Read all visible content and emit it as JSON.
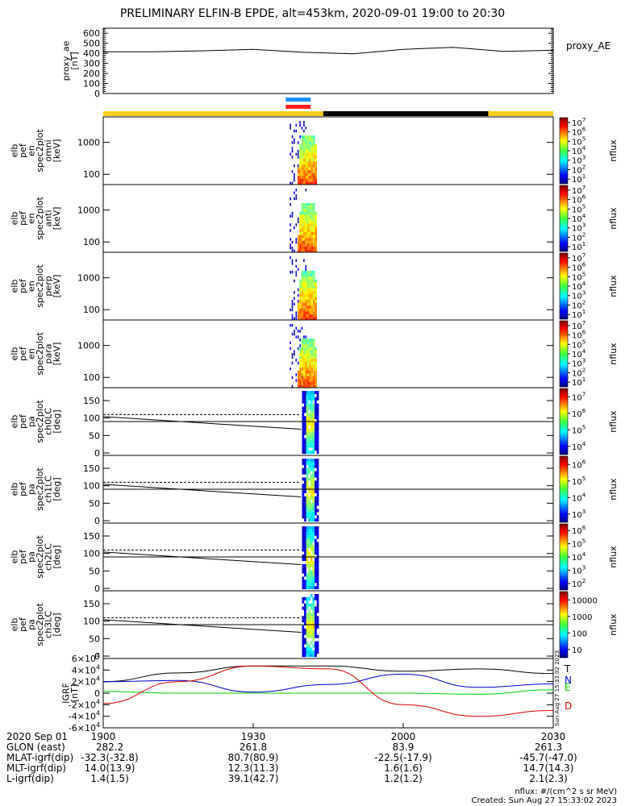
{
  "title": "PRELIMINARY ELFIN-B EPDE, alt=453km, 2020-09-01 19:00 to 20:30",
  "proxy_panel": {
    "ylabel_lines": [
      "proxy_ae",
      "[nT]"
    ],
    "legend": "proxy_AE",
    "y_ticks": [
      "0",
      "100",
      "200",
      "300",
      "400",
      "500",
      "600"
    ],
    "ylim": [
      0,
      650
    ]
  },
  "colors": {
    "sunlight": "#f5d020",
    "eclipse": "#000000",
    "bar_blue": "#1e90ff",
    "bar_red": "#ff2020",
    "grf_T": "#000000",
    "grf_N": "#0000cc",
    "grf_E": "#00cc00",
    "grf_D": "#dd0000"
  },
  "spectra_panels": [
    {
      "ylabel_lines": [
        "elb",
        "pef",
        "en",
        "spec2plot",
        "omni",
        "[keV]"
      ],
      "y_ticks": [
        "100",
        "1000"
      ],
      "cbar_ticks": [
        "10^1",
        "10^2",
        "10^3",
        "10^4",
        "10^5",
        "10^6",
        "10^7"
      ],
      "cbar_label": "nflux"
    },
    {
      "ylabel_lines": [
        "elb",
        "pef",
        "en",
        "spec2plot",
        "anti",
        "[keV]"
      ],
      "y_ticks": [
        "100",
        "1000"
      ],
      "cbar_ticks": [
        "10^1",
        "10^2",
        "10^3",
        "10^4",
        "10^5",
        "10^6",
        "10^7"
      ],
      "cbar_label": "nflux"
    },
    {
      "ylabel_lines": [
        "elb",
        "pef",
        "en",
        "spec2plot",
        "perp",
        "[keV]"
      ],
      "y_ticks": [
        "100",
        "1000"
      ],
      "cbar_ticks": [
        "10^1",
        "10^2",
        "10^3",
        "10^4",
        "10^5",
        "10^6",
        "10^7"
      ],
      "cbar_label": "nflux"
    },
    {
      "ylabel_lines": [
        "elb",
        "pef",
        "en",
        "spec2plot",
        "para",
        "[keV]"
      ],
      "y_ticks": [
        "100",
        "1000"
      ],
      "cbar_ticks": [
        "10^1",
        "10^2",
        "10^3",
        "10^4",
        "10^5",
        "10^6",
        "10^7"
      ],
      "cbar_label": "nflux"
    }
  ],
  "pa_panels": [
    {
      "ylabel_lines": [
        "elb",
        "pef",
        "pa",
        "spec2plot",
        "ch0LC",
        "[deg]"
      ],
      "y_ticks": [
        "0",
        "50",
        "100",
        "150"
      ],
      "cbar_ticks": [
        "10^4",
        "10^5",
        "10^6",
        "10^7"
      ],
      "cbar_label": "nflux"
    },
    {
      "ylabel_lines": [
        "elb",
        "pef",
        "pa",
        "spec2plot",
        "ch1LC",
        "[deg]"
      ],
      "y_ticks": [
        "0",
        "50",
        "100",
        "150"
      ],
      "cbar_ticks": [
        "10^3",
        "10^4",
        "10^5",
        "10^6"
      ],
      "cbar_label": "nflux"
    },
    {
      "ylabel_lines": [
        "elb",
        "pef",
        "pa",
        "spec2plot",
        "ch2LC",
        "[deg]"
      ],
      "y_ticks": [
        "0",
        "50",
        "100",
        "150"
      ],
      "cbar_ticks": [
        "10^2",
        "10^3",
        "10^4",
        "10^5",
        "10^6"
      ],
      "cbar_label": "nflux"
    },
    {
      "ylabel_lines": [
        "elb",
        "pef",
        "pa",
        "spec2plot",
        "ch3LC",
        "[deg]"
      ],
      "y_ticks": [
        "0",
        "50",
        "100",
        "150"
      ],
      "cbar_ticks": [
        "10",
        "100",
        "1000",
        "10000"
      ],
      "cbar_label": "nflux"
    }
  ],
  "grf_panel": {
    "ylabel_lines": [
      "IGRF",
      "[nT]"
    ],
    "y_ticks": [
      "-6×10^4",
      "-4×10^4",
      "-2×10^4",
      "0",
      "2×10^4",
      "4×10^4",
      "6×10^4"
    ],
    "ylim": [
      -60000,
      60000
    ],
    "legend": [
      "T",
      "N",
      "E",
      "D"
    ],
    "stamp": "Sun Aug 27 15:33:02 2023"
  },
  "footer": {
    "rows": [
      {
        "label": "2020 Sep 01",
        "values": [
          "1900",
          "1930",
          "2000",
          "2030"
        ]
      },
      {
        "label": "GLON (east)",
        "values": [
          "282.2",
          "261.8",
          "83.9",
          "261.3"
        ]
      },
      {
        "label": "MLAT-igrf(dip)",
        "values": [
          "-32.3(-32.8)",
          "80.7(80.9)",
          "-22.5(-17.9)",
          "-45.7(-47.0)"
        ]
      },
      {
        "label": "MLT-igrf(dip)",
        "values": [
          "14.0(13.9)",
          "12.3(11.3)",
          "1.6(1.6)",
          "14.7(14.3)"
        ]
      },
      {
        "label": "L-igrf(dip)",
        "values": [
          "1.4(1.5)",
          "39.1(42.7)",
          "1.2(1.2)",
          "2.1(2.3)"
        ]
      }
    ],
    "note_units": "nflux: #/(cm^2 s sr MeV)",
    "note_created": "Created: Sun Aug 27 15:33:02 2023"
  },
  "chart_data": [
    {
      "type": "line",
      "name": "proxy_AE",
      "x": [
        "19:00",
        "19:10",
        "19:20",
        "19:30",
        "19:40",
        "19:50",
        "20:00",
        "20:10",
        "20:20",
        "20:30"
      ],
      "y": [
        415,
        415,
        425,
        440,
        410,
        395,
        440,
        460,
        420,
        430
      ],
      "ylim": [
        0,
        650
      ]
    },
    {
      "type": "heatmap",
      "panels": [
        "omni",
        "anti",
        "perp",
        "para",
        "ch0LC",
        "ch1LC",
        "ch2LC",
        "ch3LC"
      ],
      "time_range": [
        "19:39",
        "19:44"
      ],
      "energy_range_keV": [
        60,
        5000
      ]
    },
    {
      "type": "line",
      "name": "IGRF",
      "x": [
        "19:00",
        "19:15",
        "19:30",
        "19:45",
        "20:00",
        "20:15",
        "20:30"
      ],
      "series": [
        {
          "name": "T",
          "values": [
            20000,
            35000,
            47000,
            47000,
            38000,
            42000,
            34000
          ]
        },
        {
          "name": "N",
          "values": [
            20000,
            22000,
            2000,
            15000,
            33000,
            10000,
            16000
          ]
        },
        {
          "name": "E",
          "values": [
            3000,
            0,
            0,
            0,
            0,
            -2000,
            6000
          ]
        },
        {
          "name": "D",
          "values": [
            -18000,
            20000,
            47000,
            42000,
            -20000,
            -40000,
            -30000
          ]
        }
      ],
      "ylim": [
        -60000,
        60000
      ]
    }
  ]
}
